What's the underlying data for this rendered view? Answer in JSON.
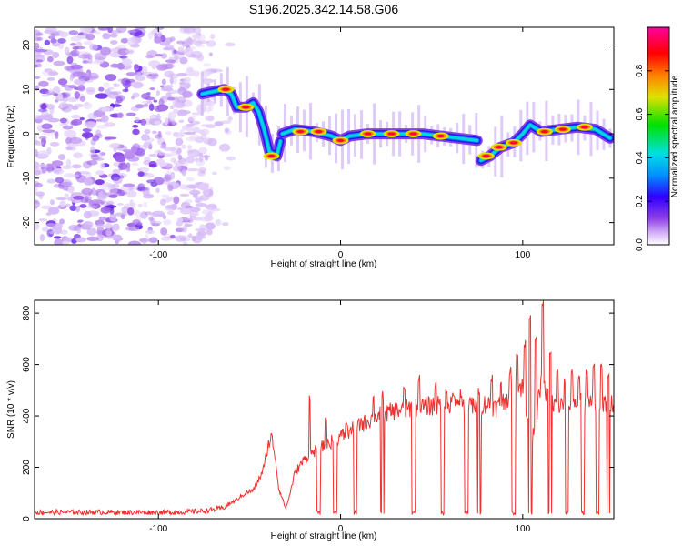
{
  "title": "S196.2025.342.14.58.G06",
  "chart_data": [
    {
      "type": "heatmap",
      "title": "S196.2025.342.14.58.G06",
      "xlabel": "Height of straight line (km)",
      "ylabel": "Frequency (Hz)",
      "xlim": [
        -168,
        150
      ],
      "ylim": [
        -25,
        24
      ],
      "xticks": [
        -100,
        0,
        100
      ],
      "yticks": [
        -20,
        -10,
        0,
        10,
        20
      ],
      "colorbar": {
        "label": "Normalized spectral amplitude",
        "range": [
          0,
          1
        ],
        "ticks": [
          "0.0",
          "0.2",
          "0.4",
          "0.6",
          "0.8"
        ],
        "tick_values": [
          0.0,
          0.2,
          0.4,
          0.6,
          0.8
        ],
        "colormap": [
          "#ffffff",
          "#d8b8f8",
          "#9040e8",
          "#3000ff",
          "#0090ff",
          "#00e0e0",
          "#00e000",
          "#e0e000",
          "#ff8000",
          "#ff0000",
          "#ff00a0"
        ]
      },
      "ridge": [
        {
          "x": -76,
          "y": 9
        },
        {
          "x": -70,
          "y": 9.5
        },
        {
          "x": -64,
          "y": 10
        },
        {
          "x": -60,
          "y": 9
        },
        {
          "x": -57,
          "y": 6
        },
        {
          "x": -52,
          "y": 6
        },
        {
          "x": -48,
          "y": 7
        },
        {
          "x": -45,
          "y": 5
        },
        {
          "x": -42,
          "y": 1
        },
        {
          "x": -39,
          "y": -4
        },
        {
          "x": -35,
          "y": -5
        },
        {
          "x": -32,
          "y": 0
        },
        {
          "x": -25,
          "y": 1
        },
        {
          "x": -15,
          "y": 0.5
        },
        {
          "x": -5,
          "y": -0.5
        },
        {
          "x": 0,
          "y": -1.5
        },
        {
          "x": 5,
          "y": -0.5
        },
        {
          "x": 15,
          "y": 0
        },
        {
          "x": 30,
          "y": 0
        },
        {
          "x": 45,
          "y": 0
        },
        {
          "x": 55,
          "y": -0.5
        },
        {
          "x": 65,
          "y": -1
        },
        {
          "x": 75,
          "y": -1.5
        },
        {
          "x": 77,
          "y": -6
        },
        {
          "x": 82,
          "y": -5
        },
        {
          "x": 88,
          "y": -3
        },
        {
          "x": 95,
          "y": -2
        },
        {
          "x": 100,
          "y": 0
        },
        {
          "x": 104,
          "y": 2
        },
        {
          "x": 110,
          "y": 0.5
        },
        {
          "x": 120,
          "y": 1
        },
        {
          "x": 130,
          "y": 1.5
        },
        {
          "x": 140,
          "y": 1
        },
        {
          "x": 148,
          "y": -1
        }
      ],
      "hot_spots": [
        {
          "x": -63,
          "y": 10
        },
        {
          "x": -52,
          "y": 6
        },
        {
          "x": -38,
          "y": -5
        },
        {
          "x": -22,
          "y": 0.5
        },
        {
          "x": -12,
          "y": 0.5
        },
        {
          "x": 0,
          "y": -1.5
        },
        {
          "x": 15,
          "y": 0
        },
        {
          "x": 28,
          "y": 0
        },
        {
          "x": 40,
          "y": 0
        },
        {
          "x": 55,
          "y": -0.5
        },
        {
          "x": 80,
          "y": -5
        },
        {
          "x": 87,
          "y": -3
        },
        {
          "x": 95,
          "y": -2
        },
        {
          "x": 112,
          "y": 0.5
        },
        {
          "x": 122,
          "y": 1
        },
        {
          "x": 134,
          "y": 1.5
        }
      ]
    },
    {
      "type": "line",
      "xlabel": "Height of straight line (km)",
      "ylabel": "SNR (10 * v/v)",
      "xlim": [
        -168,
        150
      ],
      "ylim": [
        0,
        850
      ],
      "xticks": [
        -100,
        0,
        100
      ],
      "yticks": [
        0,
        200,
        400,
        600,
        800
      ],
      "series": [
        {
          "name": "SNR",
          "color": "#f03030",
          "x": [
            -168,
            -150,
            -130,
            -110,
            -90,
            -75,
            -65,
            -58,
            -52,
            -48,
            -45,
            -42,
            -40,
            -38,
            -36,
            -34,
            -32,
            -30,
            -28,
            -25,
            -20,
            -15,
            -10,
            -5,
            0,
            5,
            10,
            15,
            20,
            25,
            30,
            40,
            50,
            60,
            70,
            75,
            80,
            85,
            90,
            95,
            100,
            105,
            110,
            115,
            120,
            130,
            140,
            150
          ],
          "values": [
            25,
            25,
            25,
            25,
            25,
            30,
            40,
            70,
            100,
            110,
            150,
            200,
            280,
            320,
            250,
            120,
            80,
            40,
            90,
            180,
            230,
            260,
            280,
            300,
            320,
            340,
            360,
            380,
            400,
            410,
            420,
            430,
            440,
            440,
            440,
            430,
            450,
            430,
            460,
            500,
            520,
            300,
            520,
            450,
            440,
            450,
            450,
            450
          ]
        }
      ],
      "spike_x": [
        -17,
        -8,
        3,
        11,
        18,
        23,
        35,
        43,
        52,
        58,
        62,
        66,
        71,
        76,
        83,
        88,
        93,
        97,
        101,
        104,
        107,
        111,
        115,
        119,
        123,
        127,
        131,
        135,
        139,
        143,
        147
      ],
      "spike_values": [
        480,
        420,
        390,
        400,
        480,
        500,
        520,
        560,
        540,
        520,
        500,
        510,
        490,
        520,
        560,
        540,
        600,
        640,
        700,
        800,
        720,
        850,
        680,
        600,
        560,
        580,
        560,
        600,
        620,
        610,
        580
      ],
      "dip_x": [
        -12,
        -3,
        8,
        23,
        40,
        56,
        69,
        76,
        95,
        104,
        115,
        124,
        133,
        141,
        147
      ]
    }
  ]
}
